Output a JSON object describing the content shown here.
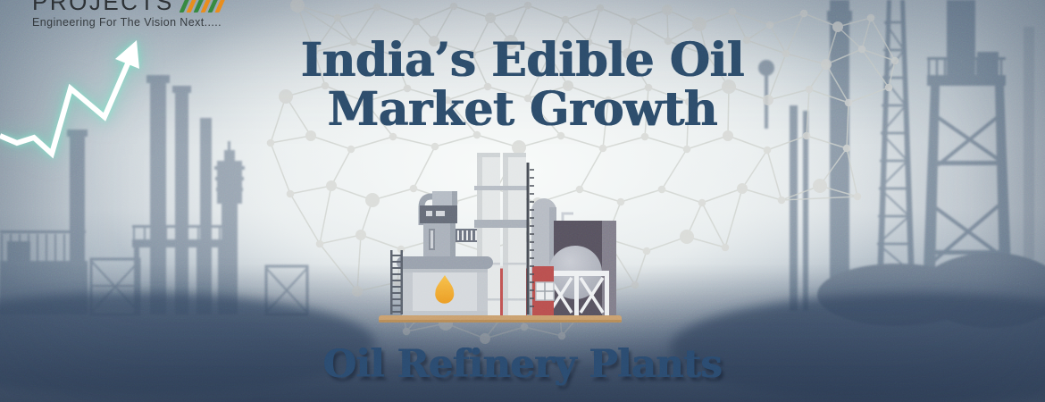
{
  "logo": {
    "name": "PROJECTS",
    "tagline": "Engineering For The Vision Next.....",
    "stripe_green": "#35853e",
    "stripe_orange": "#e8891c"
  },
  "title": {
    "line1": "India’s Edible Oil",
    "line2": "Market Growth",
    "color": "#2c4b69"
  },
  "subtitle": {
    "text": "Oil Refinery Plants",
    "color": "#2a4a6e"
  },
  "arrow": {
    "color": "#ffffff",
    "glow_color": "#6fdcc3"
  },
  "illustration": {
    "oil_drop_color": "#f2ac34",
    "platform_color": "#c99f6e",
    "red_color": "#bf5251",
    "dark_building_color": "#57525f"
  },
  "background": {
    "mesh_color": "#d4d6d3",
    "silhouette_left_color": "#54687f",
    "silhouette_right_color": "#4c6078",
    "bottom_color": "#3e5069"
  }
}
